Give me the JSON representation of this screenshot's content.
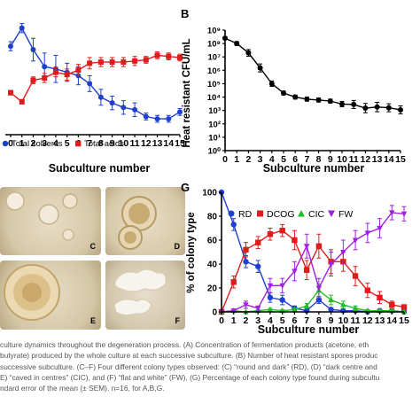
{
  "panelA": {
    "letter": "",
    "xlabel": "Subculture number",
    "legend": [
      {
        "label": "Total solvents",
        "color": "#1f3fd1",
        "marker": "circle"
      },
      {
        "label": "Total acids",
        "color": "#e01b1b",
        "marker": "square"
      }
    ]
  },
  "panelB": {
    "letter": "B",
    "ylabel": "Heat resistant CFU/mL",
    "xlabel": "Subculture number"
  },
  "panelG": {
    "letter": "G",
    "ylabel": "% of colony type",
    "xlabel": "Subculture number",
    "legend": [
      {
        "label": "RD",
        "color": "#1f3fd1",
        "marker": "circle"
      },
      {
        "label": "DCOG",
        "color": "#e01b1b",
        "marker": "square"
      },
      {
        "label": "CIC",
        "color": "#1fbf1f",
        "marker": "triangle"
      },
      {
        "label": "FW",
        "color": "#a020e0",
        "marker": "triangle-down"
      }
    ]
  },
  "photos": [
    {
      "label": "C",
      "type": "round-dark"
    },
    {
      "label": "D",
      "type": "dark-centre"
    },
    {
      "label": "E",
      "type": "caved"
    },
    {
      "label": "F",
      "type": "flat-white"
    }
  ],
  "caption": [
    "culture dynamics throughout the degeneration process. (A) Concentration of fermentation products (acetone, eth",
    "butyrate) produced by the whole culture at each successive subculture. (B) Number of heat resistant spores produc",
    "successive subculture. (C–F) Four different colony types observed: (C) “round and dark” (RD), (D) “dark centre and",
    "E) “caved in centres” (CIC), and (F) “flat and white” (FW). (G) Percentage of each colony type found during subcultu",
    "ndard error of the mean (± SEM). n=16, for A,B,G."
  ],
  "chart_data": [
    {
      "type": "line",
      "title": "",
      "xlabel": "Subculture number",
      "ylabel": "",
      "x": [
        0,
        1,
        2,
        3,
        4,
        5,
        6,
        7,
        8,
        9,
        10,
        11,
        12,
        13,
        14,
        15
      ],
      "xticks": [
        "0",
        "1",
        "2",
        "3",
        "4",
        "5",
        "6",
        "7",
        "8",
        "9",
        "10",
        "11",
        "12",
        "13",
        "14",
        "15"
      ],
      "yrange": [
        0,
        100
      ],
      "series": [
        {
          "name": "Total solvents",
          "color": "#1f3fd1",
          "marker": "circle",
          "values": [
            78,
            94,
            75,
            60,
            58,
            55,
            52,
            45,
            33,
            28,
            24,
            22,
            16,
            14,
            14,
            20
          ],
          "error": [
            4,
            4,
            10,
            12,
            12,
            8,
            8,
            7,
            7,
            6,
            6,
            6,
            3,
            3,
            3,
            3
          ]
        },
        {
          "name": "Total acids",
          "color": "#e01b1b",
          "marker": "square",
          "values": [
            37,
            29,
            48,
            50,
            55,
            53,
            57,
            63,
            64,
            64,
            64,
            65,
            66,
            70,
            69,
            68
          ],
          "error": [
            2,
            2,
            3,
            4,
            4,
            5,
            5,
            5,
            4,
            4,
            4,
            4,
            3,
            3,
            3,
            3
          ]
        }
      ]
    },
    {
      "type": "line",
      "title": "",
      "xlabel": "Subculture number",
      "ylabel": "Heat resistant CFU/mL",
      "yscale": "log",
      "yrange": [
        1,
        1000000000
      ],
      "yticks": [
        "10⁰",
        "10¹",
        "10²",
        "10³",
        "10⁴",
        "10⁵",
        "10⁶",
        "10⁷",
        "10⁸",
        "10⁹"
      ],
      "xticks": [
        "0",
        "1",
        "2",
        "3",
        "4",
        "5",
        "6",
        "7",
        "8",
        "9",
        "10",
        "11",
        "12",
        "13",
        "14",
        "15"
      ],
      "x": [
        0,
        1,
        2,
        3,
        4,
        5,
        6,
        7,
        8,
        9,
        10,
        11,
        12,
        13,
        14,
        15
      ],
      "series": [
        {
          "name": "",
          "color": "#000000",
          "marker": "circle",
          "values": [
            250000000,
            100000000,
            20000000,
            1500000,
            100000,
            20000,
            10000,
            7000,
            6000,
            5000,
            3000,
            2800,
            1500,
            1800,
            1600,
            1100
          ],
          "error_log": [
            0.1,
            0.15,
            0.25,
            0.3,
            0.2,
            0.15,
            0.15,
            0.15,
            0.15,
            0.15,
            0.2,
            0.3,
            0.35,
            0.35,
            0.3,
            0.3
          ]
        }
      ]
    },
    {
      "type": "line",
      "title": "",
      "xlabel": "Subculture number",
      "ylabel": "% of colony type",
      "yrange": [
        0,
        100
      ],
      "yticks": [
        "0",
        "20",
        "40",
        "60",
        "80",
        "100"
      ],
      "xticks": [
        "0",
        "1",
        "2",
        "3",
        "4",
        "5",
        "6",
        "7",
        "8",
        "9",
        "10",
        "11",
        "12",
        "13",
        "14",
        "15"
      ],
      "x": [
        0,
        1,
        2,
        3,
        4,
        5,
        6,
        7,
        8,
        9,
        10,
        11,
        12,
        13,
        14,
        15
      ],
      "legend_position": "top",
      "series": [
        {
          "name": "RD",
          "color": "#1f3fd1",
          "marker": "circle",
          "values": [
            100,
            73,
            42,
            38,
            12,
            10,
            3,
            1,
            10,
            2,
            1,
            1,
            0,
            1,
            1,
            0
          ],
          "error": [
            0,
            5,
            5,
            5,
            4,
            4,
            2,
            1,
            3,
            1,
            1,
            1,
            0,
            1,
            1,
            0
          ]
        },
        {
          "name": "DCOG",
          "color": "#e01b1b",
          "marker": "square",
          "values": [
            0,
            25,
            52,
            58,
            65,
            68,
            60,
            35,
            55,
            42,
            42,
            30,
            18,
            12,
            6,
            4
          ],
          "error": [
            0,
            5,
            6,
            5,
            5,
            5,
            8,
            8,
            10,
            10,
            8,
            8,
            6,
            5,
            3,
            2
          ]
        },
        {
          "name": "CIC",
          "color": "#1fbf1f",
          "marker": "triangle",
          "values": [
            0,
            1,
            0,
            1,
            2,
            1,
            2,
            5,
            18,
            10,
            6,
            3,
            1,
            1,
            1,
            0
          ],
          "error": [
            0,
            1,
            0,
            1,
            1,
            1,
            1,
            2,
            5,
            4,
            3,
            2,
            1,
            1,
            1,
            0
          ]
        },
        {
          "name": "FW",
          "color": "#a020e0",
          "marker": "triangle-down",
          "values": [
            0,
            1,
            6,
            3,
            22,
            22,
            34,
            55,
            20,
            40,
            50,
            60,
            66,
            70,
            83,
            82
          ],
          "error": [
            0,
            1,
            3,
            2,
            6,
            6,
            8,
            10,
            8,
            10,
            10,
            8,
            8,
            8,
            6,
            6
          ]
        }
      ]
    }
  ]
}
